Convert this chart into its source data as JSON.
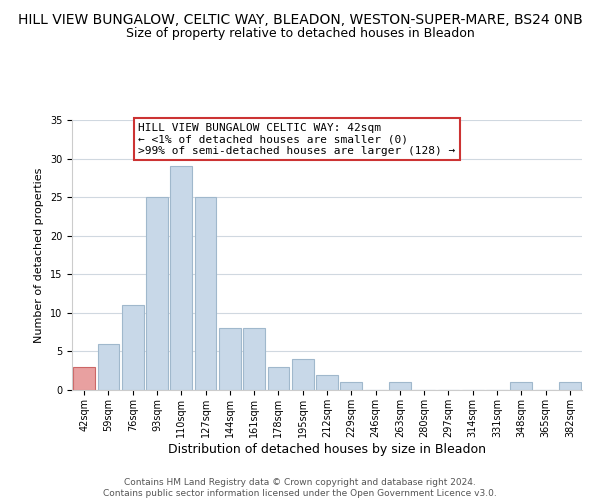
{
  "title": "HILL VIEW BUNGALOW, CELTIC WAY, BLEADON, WESTON-SUPER-MARE, BS24 0NB",
  "subtitle": "Size of property relative to detached houses in Bleadon",
  "xlabel": "Distribution of detached houses by size in Bleadon",
  "ylabel": "Number of detached properties",
  "bar_labels": [
    "42sqm",
    "59sqm",
    "76sqm",
    "93sqm",
    "110sqm",
    "127sqm",
    "144sqm",
    "161sqm",
    "178sqm",
    "195sqm",
    "212sqm",
    "229sqm",
    "246sqm",
    "263sqm",
    "280sqm",
    "297sqm",
    "314sqm",
    "331sqm",
    "348sqm",
    "365sqm",
    "382sqm"
  ],
  "bar_heights": [
    3,
    6,
    11,
    25,
    29,
    25,
    8,
    8,
    3,
    4,
    2,
    1,
    0,
    1,
    0,
    0,
    0,
    0,
    1,
    0,
    1
  ],
  "bar_color": "#c8d8e8",
  "bar_edge_color": "#a0b8cc",
  "highlight_bar_index": 0,
  "highlight_color": "#e8a0a0",
  "highlight_edge_color": "#cc6666",
  "ylim": [
    0,
    35
  ],
  "yticks": [
    0,
    5,
    10,
    15,
    20,
    25,
    30,
    35
  ],
  "annotation_title": "HILL VIEW BUNGALOW CELTIC WAY: 42sqm",
  "annotation_line1": "← <1% of detached houses are smaller (0)",
  "annotation_line2": ">99% of semi-detached houses are larger (128) →",
  "footer1": "Contains HM Land Registry data © Crown copyright and database right 2024.",
  "footer2": "Contains public sector information licensed under the Open Government Licence v3.0.",
  "background_color": "#ffffff",
  "grid_color": "#d0d8e0",
  "title_fontsize": 10,
  "subtitle_fontsize": 9,
  "xlabel_fontsize": 9,
  "ylabel_fontsize": 8,
  "tick_fontsize": 7,
  "annotation_fontsize": 8,
  "footer_fontsize": 6.5
}
